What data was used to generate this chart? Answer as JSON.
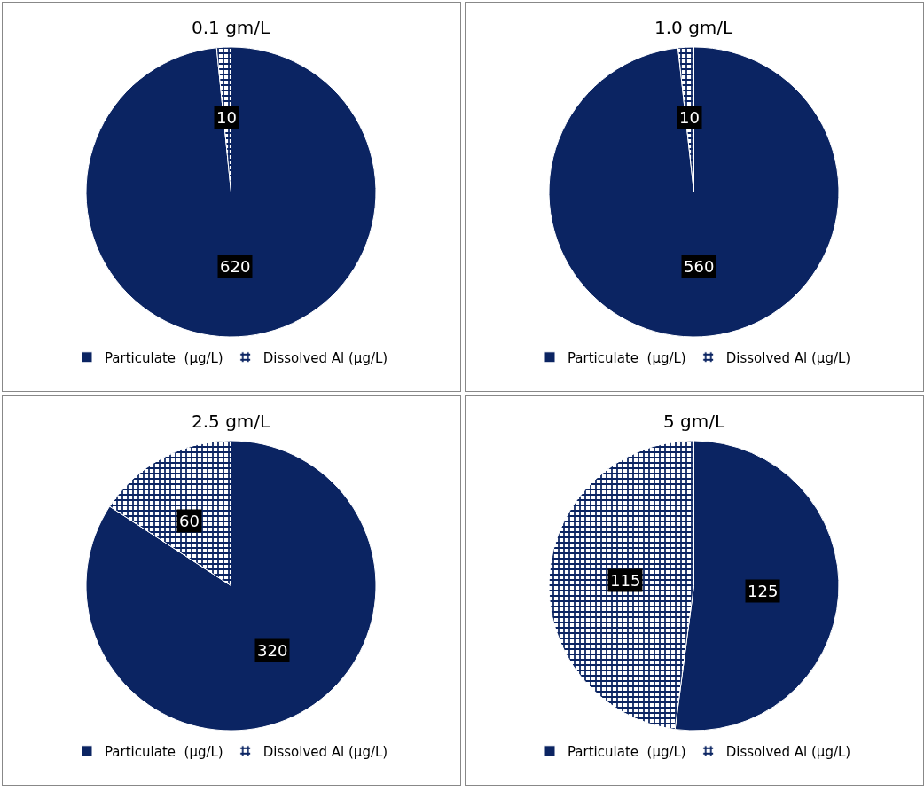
{
  "chart_data": [
    {
      "type": "pie",
      "title": "0.1 gm/L",
      "categories": [
        "Particulate  (μg/L)",
        "Dissolved Al (μg/L)"
      ],
      "values": [
        620,
        10
      ],
      "colors": [
        "#0b2462",
        "#ffffff"
      ],
      "data_labels": true,
      "legend": "bottom"
    },
    {
      "type": "pie",
      "title": "1.0 gm/L",
      "categories": [
        "Particulate  (μg/L)",
        "Dissolved Al (μg/L)"
      ],
      "values": [
        560,
        10
      ],
      "colors": [
        "#0b2462",
        "#ffffff"
      ],
      "data_labels": true,
      "legend": "bottom"
    },
    {
      "type": "pie",
      "title": "2.5 gm/L",
      "categories": [
        "Particulate  (μg/L)",
        "Dissolved Al (μg/L)"
      ],
      "values": [
        320,
        60
      ],
      "colors": [
        "#0b2462",
        "#ffffff"
      ],
      "data_labels": true,
      "legend": "bottom"
    },
    {
      "type": "pie",
      "title": "5 gm/L",
      "categories": [
        "Particulate  (μg/L)",
        "Dissolved Al (μg/L)"
      ],
      "values": [
        125,
        115
      ],
      "colors": [
        "#0b2462",
        "#ffffff"
      ],
      "data_labels": true,
      "legend": "bottom"
    }
  ]
}
